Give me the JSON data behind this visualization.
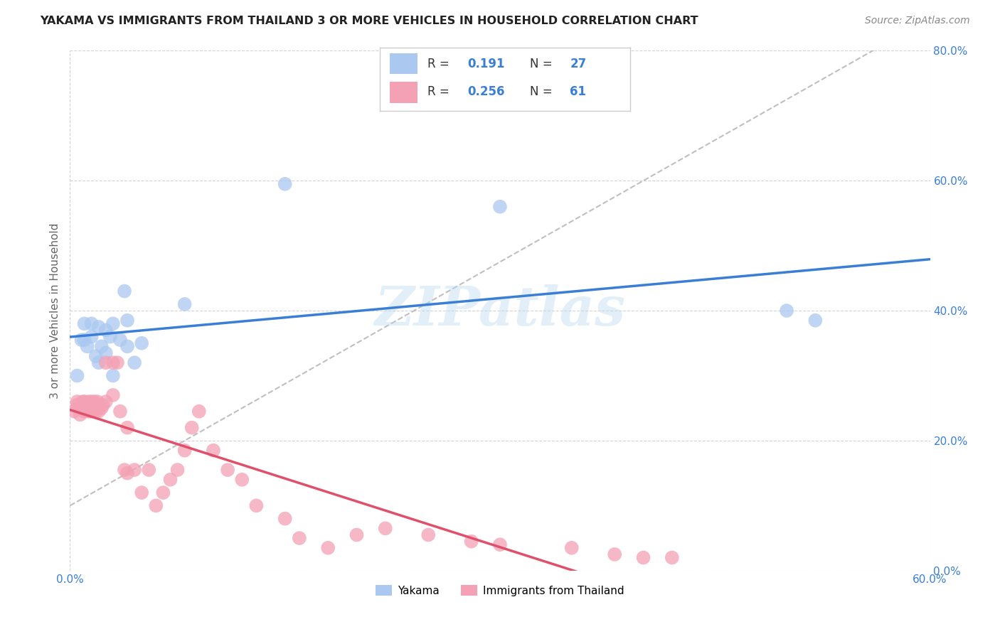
{
  "title": "YAKAMA VS IMMIGRANTS FROM THAILAND 3 OR MORE VEHICLES IN HOUSEHOLD CORRELATION CHART",
  "source": "Source: ZipAtlas.com",
  "ylabel": "3 or more Vehicles in Household",
  "xlim": [
    0.0,
    0.6
  ],
  "ylim": [
    0.0,
    0.8
  ],
  "xticks": [
    0.0,
    0.1,
    0.2,
    0.3,
    0.4,
    0.5,
    0.6
  ],
  "yticks": [
    0.0,
    0.2,
    0.4,
    0.6,
    0.8
  ],
  "xtick_labels": [
    "0.0%",
    "",
    "",
    "",
    "",
    "",
    "60.0%"
  ],
  "ytick_labels_right": [
    "0.0%",
    "20.0%",
    "40.0%",
    "60.0%",
    "80.0%"
  ],
  "bottom_xtick_labels": [
    "0.0%",
    "60.0%"
  ],
  "yakama_color": "#aac8f0",
  "thailand_color": "#f4a0b5",
  "trend_yakama_color": "#3a7fd5",
  "trend_thailand_color": "#e0506a",
  "R_yakama": 0.191,
  "N_yakama": 27,
  "R_thailand": 0.256,
  "N_thailand": 61,
  "watermark": "ZIPatlas",
  "background_color": "#ffffff",
  "grid_color": "#cccccc",
  "legend_text_color": "#333333",
  "legend_value_color": "#3a7fd5",
  "yakama_x": [
    0.005,
    0.008,
    0.01,
    0.01,
    0.012,
    0.015,
    0.015,
    0.018,
    0.02,
    0.02,
    0.022,
    0.025,
    0.025,
    0.028,
    0.03,
    0.03,
    0.035,
    0.038,
    0.04,
    0.04,
    0.045,
    0.05,
    0.08,
    0.15,
    0.5,
    0.52,
    0.3
  ],
  "yakama_y": [
    0.3,
    0.355,
    0.355,
    0.38,
    0.345,
    0.38,
    0.36,
    0.33,
    0.375,
    0.32,
    0.345,
    0.335,
    0.37,
    0.36,
    0.3,
    0.38,
    0.355,
    0.43,
    0.385,
    0.345,
    0.32,
    0.35,
    0.41,
    0.595,
    0.4,
    0.385,
    0.56
  ],
  "thailand_x": [
    0.003,
    0.005,
    0.005,
    0.006,
    0.007,
    0.008,
    0.008,
    0.009,
    0.01,
    0.01,
    0.01,
    0.012,
    0.013,
    0.013,
    0.015,
    0.015,
    0.015,
    0.016,
    0.017,
    0.018,
    0.018,
    0.019,
    0.02,
    0.02,
    0.022,
    0.023,
    0.025,
    0.025,
    0.03,
    0.03,
    0.033,
    0.035,
    0.038,
    0.04,
    0.04,
    0.045,
    0.05,
    0.055,
    0.06,
    0.065,
    0.07,
    0.075,
    0.08,
    0.085,
    0.09,
    0.1,
    0.11,
    0.12,
    0.13,
    0.15,
    0.16,
    0.18,
    0.2,
    0.22,
    0.25,
    0.28,
    0.3,
    0.35,
    0.38,
    0.4,
    0.42
  ],
  "thailand_y": [
    0.245,
    0.255,
    0.26,
    0.25,
    0.24,
    0.25,
    0.255,
    0.26,
    0.245,
    0.25,
    0.26,
    0.255,
    0.245,
    0.26,
    0.245,
    0.255,
    0.26,
    0.255,
    0.26,
    0.245,
    0.255,
    0.26,
    0.245,
    0.255,
    0.25,
    0.255,
    0.26,
    0.32,
    0.27,
    0.32,
    0.32,
    0.245,
    0.155,
    0.22,
    0.15,
    0.155,
    0.12,
    0.155,
    0.1,
    0.12,
    0.14,
    0.155,
    0.185,
    0.22,
    0.245,
    0.185,
    0.155,
    0.14,
    0.1,
    0.08,
    0.05,
    0.035,
    0.055,
    0.065,
    0.055,
    0.045,
    0.04,
    0.035,
    0.025,
    0.02,
    0.02
  ]
}
